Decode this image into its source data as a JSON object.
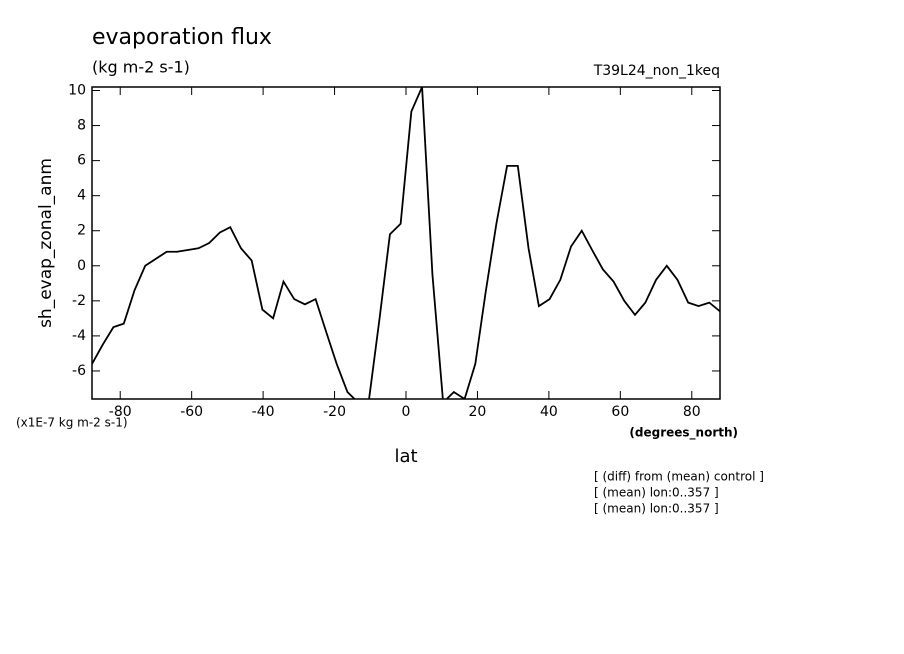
{
  "chart_data": {
    "type": "line",
    "title": "evaporation flux",
    "subtitle": "(kg m-2 s-1)",
    "run_label": "T39L24_non_1keq",
    "ylabel": "sh_evap_zonal_anm",
    "y_unit": "(x1E-7 kg m-2 s-1)",
    "xlabel": "lat",
    "x_unit": "(degrees_north)",
    "notes": [
      "[ (diff) from (mean) control ]",
      "[ (mean) lon:0..357 ]",
      "[ (mean) lon:0..357 ]"
    ],
    "x": [
      -87.9,
      -84.9,
      -81.9,
      -79.0,
      -76.0,
      -73.0,
      -70.0,
      -67.0,
      -64.1,
      -61.1,
      -58.1,
      -55.1,
      -52.1,
      -49.2,
      -46.2,
      -43.2,
      -40.2,
      -37.2,
      -34.3,
      -31.3,
      -28.3,
      -25.3,
      -22.3,
      -19.4,
      -16.4,
      -13.4,
      -10.4,
      -7.4,
      -4.5,
      -1.5,
      1.5,
      4.5,
      7.4,
      10.4,
      13.4,
      16.4,
      19.4,
      22.3,
      25.3,
      28.3,
      31.3,
      34.3,
      37.2,
      40.2,
      43.2,
      46.2,
      49.2,
      52.1,
      55.1,
      58.1,
      61.1,
      64.1,
      67.0,
      70.0,
      73.0,
      76.0,
      79.0,
      81.9,
      84.9,
      87.9
    ],
    "series": [
      {
        "name": "sh_evap_zonal_anm",
        "color": "#000000",
        "values": [
          -5.6,
          -4.5,
          -3.5,
          -3.3,
          -1.4,
          0.0,
          0.4,
          0.8,
          0.8,
          0.9,
          1.0,
          1.3,
          1.9,
          2.2,
          1.0,
          0.3,
          -2.5,
          -3.0,
          -0.9,
          -1.9,
          -2.2,
          -1.9,
          -3.8,
          -5.6,
          -7.2,
          -7.8,
          -7.7,
          -3.0,
          1.8,
          2.4,
          8.8,
          10.2,
          -0.5,
          -7.8,
          -7.2,
          -7.6,
          -5.6,
          -1.5,
          2.4,
          5.7,
          5.7,
          1.0,
          -2.3,
          -1.9,
          -0.8,
          1.1,
          2.0,
          0.9,
          -0.2,
          -0.9,
          -2.0,
          -2.8,
          -2.1,
          -0.8,
          0.0,
          -0.8,
          -2.1,
          -2.3,
          -2.1,
          -2.6
        ]
      }
    ],
    "xlim": [
      -87.9,
      87.9
    ],
    "xticks": [
      -80,
      -60,
      -40,
      -20,
      0,
      20,
      40,
      60,
      80
    ],
    "ylim": [
      -7.6,
      10.2
    ],
    "yticks": [
      -6,
      -4,
      -2,
      0,
      2,
      4,
      6,
      8,
      10
    ],
    "grid": false
  }
}
